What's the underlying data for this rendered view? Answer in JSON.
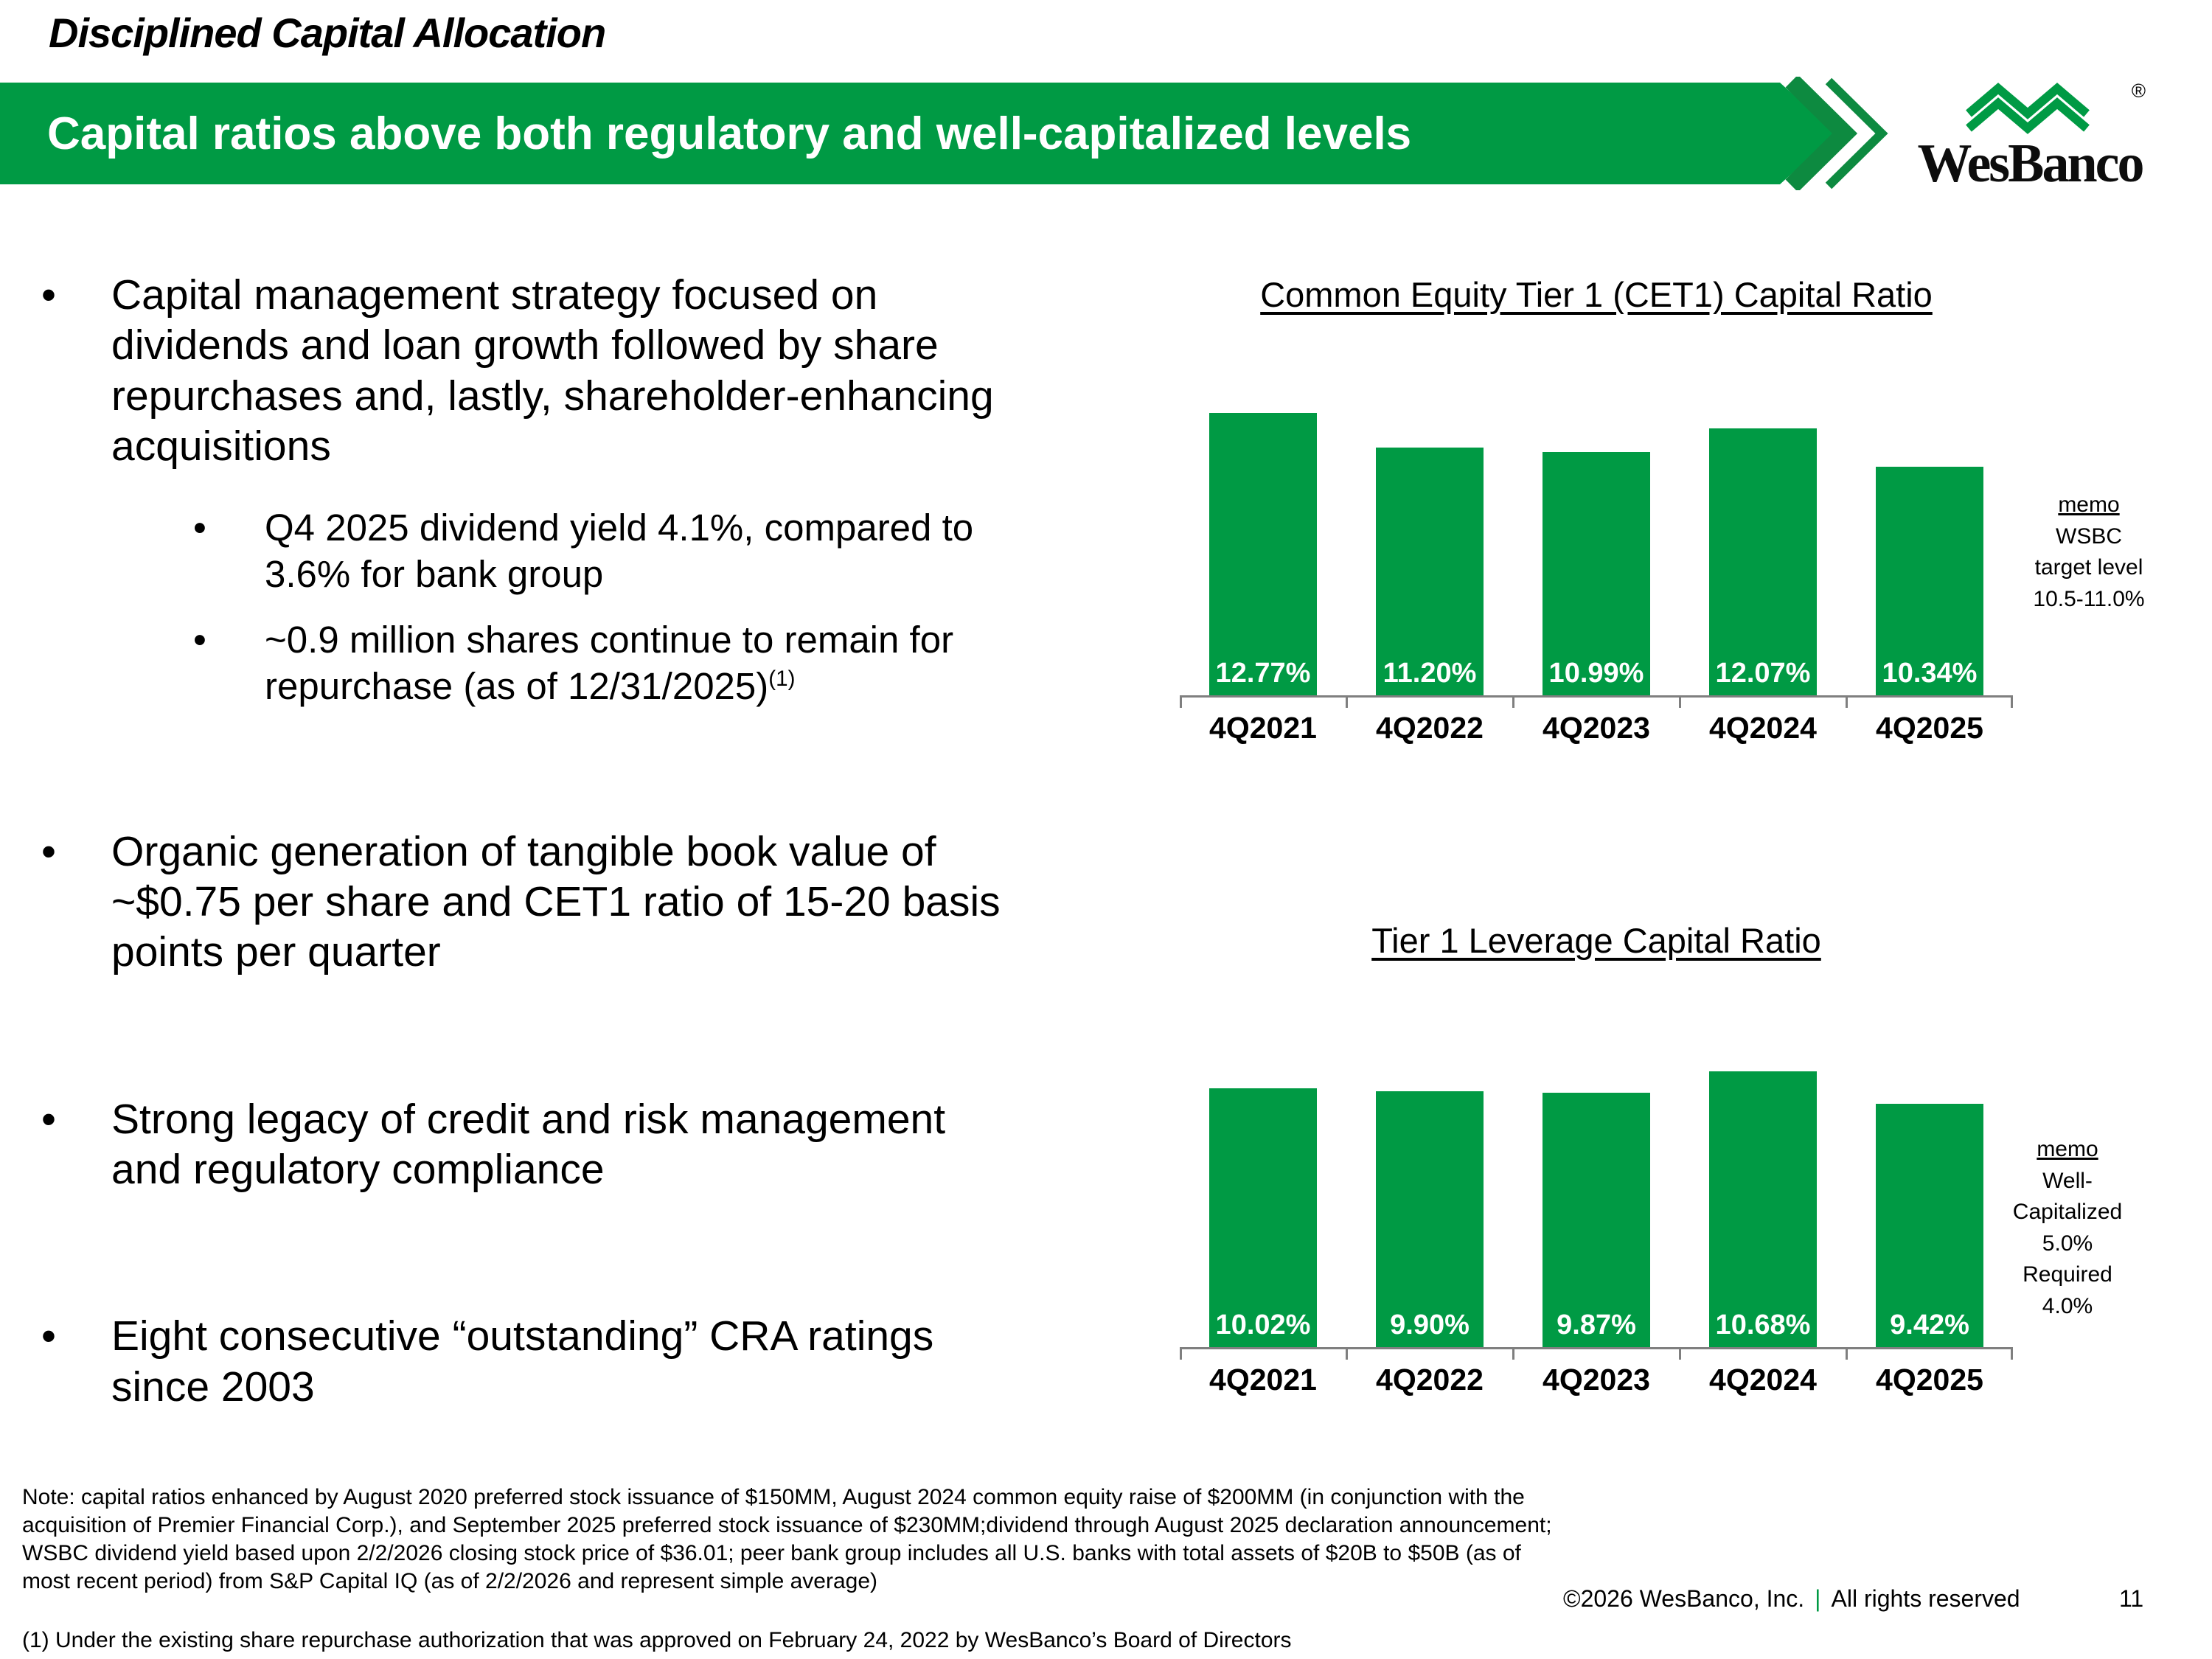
{
  "page": {
    "eyebrow": "Disciplined Capital Allocation",
    "banner_title": "Capital ratios above both regulatory and well-capitalized levels",
    "logo_text": "WesBanco",
    "registered_mark": "®",
    "copyright_left": "©2026 WesBanco, Inc.",
    "copyright_sep": "|",
    "copyright_right": "All rights reserved",
    "page_number": "11"
  },
  "glyphs": {
    "bullet": "•"
  },
  "colors": {
    "brand_green": "#009A44",
    "axis_gray": "#7f7f7f"
  },
  "bullets": [
    {
      "text": "Capital management strategy focused on dividends and loan growth followed by share repurchases and, lastly, shareholder-enhancing acquisitions",
      "subs": [
        {
          "text": "Q4 2025 dividend yield 4.1%, compared to 3.6% for bank group",
          "sup": ""
        },
        {
          "text": "~0.9 million shares continue to remain for repurchase (as of 12/31/2025)",
          "sup": "(1)"
        }
      ]
    },
    {
      "text": "Organic generation of tangible book value of ~$0.75 per share and CET1 ratio of 15-20 basis points per quarter",
      "subs": []
    },
    {
      "text": "Strong legacy of credit and risk management and regulatory compliance",
      "subs": []
    },
    {
      "text": "Eight consecutive “outstanding” CRA ratings since 2003",
      "subs": []
    }
  ],
  "chart_data": [
    {
      "type": "bar",
      "title": "Common Equity Tier 1 (CET1) Capital Ratio",
      "categories": [
        "4Q2021",
        "4Q2022",
        "4Q2023",
        "4Q2024",
        "4Q2025"
      ],
      "values": [
        12.77,
        11.2,
        10.99,
        12.07,
        10.34
      ],
      "value_labels": [
        "12.77%",
        "11.20%",
        "10.99%",
        "12.07%",
        "10.34%"
      ],
      "ylim": [
        0,
        14
      ],
      "bar_color": "#009A44",
      "legend": "none",
      "grid": false,
      "memo": {
        "heading": "memo",
        "lines": [
          "WSBC",
          "target level",
          "10.5-11.0%"
        ]
      }
    },
    {
      "type": "bar",
      "title": "Tier 1 Leverage Capital Ratio",
      "categories": [
        "4Q2021",
        "4Q2022",
        "4Q2023",
        "4Q2024",
        "4Q2025"
      ],
      "values": [
        10.02,
        9.9,
        9.87,
        10.68,
        9.42
      ],
      "value_labels": [
        "10.02%",
        "9.90%",
        "9.87%",
        "10.68%",
        "9.42%"
      ],
      "ylim": [
        0,
        12
      ],
      "bar_color": "#009A44",
      "legend": "none",
      "grid": false,
      "memo": {
        "heading": "memo",
        "lines": [
          "Well-",
          "Capitalized",
          "5.0%",
          "Required",
          "4.0%"
        ]
      }
    }
  ],
  "footnotes": {
    "note": "Note: capital ratios enhanced by August 2020 preferred stock issuance of $150MM, August 2024 common equity raise of $200MM (in conjunction with the acquisition of Premier Financial Corp.), and September 2025 preferred stock issuance of $230MM;dividend through August 2025 declaration announcement; WSBC dividend yield based upon 2/2/2026 closing stock price of $36.01; peer bank group includes all U.S. banks with total assets of $20B to $50B (as of most recent period) from S&P Capital IQ (as of 2/2/2026 and represent simple average)",
    "footnote1": "(1)   Under the existing share repurchase authorization that was approved on February 24, 2022 by WesBanco’s Board of Directors"
  }
}
